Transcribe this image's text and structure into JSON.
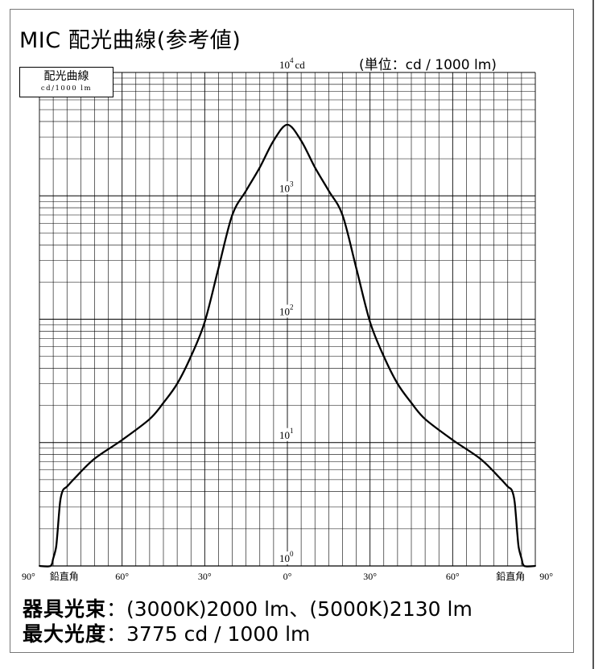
{
  "title": "MIC 配光曲線(参考値)",
  "unit_note": "(単位：cd / 1000 lm)",
  "legend": {
    "line1": "配光曲線",
    "line2": "cd/1000 lm"
  },
  "info": {
    "flux_label": "器具光束",
    "flux_value": "：(3000K)2000 lm、(5000K)2130 lm",
    "max_label": "最大光度",
    "max_value": "：3775 cd / 1000 lm"
  },
  "chart_data": {
    "type": "line",
    "title": "MIC 配光曲線(参考値)",
    "ylabel": "cd",
    "y_scale": "log",
    "ylim": [
      1,
      10000
    ],
    "xlim": [
      -90,
      90
    ],
    "grid": true,
    "y_ticks": [
      {
        "base": "10",
        "exp": "0"
      },
      {
        "base": "10",
        "exp": "1"
      },
      {
        "base": "10",
        "exp": "2"
      },
      {
        "base": "10",
        "exp": "3"
      },
      {
        "base": "10",
        "exp": "4",
        "unit": "cd"
      }
    ],
    "x_ticks": [
      {
        "value": -90,
        "label": "90°"
      },
      {
        "value": -81,
        "label": "鉛直角"
      },
      {
        "value": -60,
        "label": "60°"
      },
      {
        "value": -30,
        "label": "30°"
      },
      {
        "value": 0,
        "label": "0°"
      },
      {
        "value": 30,
        "label": "30°"
      },
      {
        "value": 60,
        "label": "60°"
      },
      {
        "value": 81,
        "label": "鉛直角"
      },
      {
        "value": 90,
        "label": "90°"
      }
    ],
    "series": [
      {
        "x": [
          -90,
          -86,
          -85,
          -84,
          -83.5,
          -82.5,
          -81.5,
          -80,
          -77,
          -70,
          -60,
          -50,
          -45,
          -40,
          -35,
          -30,
          -25,
          -20,
          -15,
          -10,
          -5,
          0,
          5,
          10,
          15,
          20,
          25,
          30,
          35,
          40,
          45,
          50,
          60,
          70,
          77,
          80,
          81.5,
          82.5,
          83.5,
          84,
          85,
          86,
          90
        ],
        "y": [
          1,
          1,
          1.15,
          1.4,
          1.8,
          3.3,
          4.1,
          4.4,
          5.2,
          7.4,
          10.5,
          15.5,
          21,
          30,
          50,
          95,
          260,
          700,
          1100,
          1700,
          2800,
          3775,
          2800,
          1700,
          1100,
          700,
          260,
          95,
          50,
          30,
          21,
          15.5,
          10.5,
          7.4,
          5.2,
          4.4,
          4.1,
          3.3,
          1.8,
          1.4,
          1.15,
          1,
          1
        ]
      }
    ]
  }
}
